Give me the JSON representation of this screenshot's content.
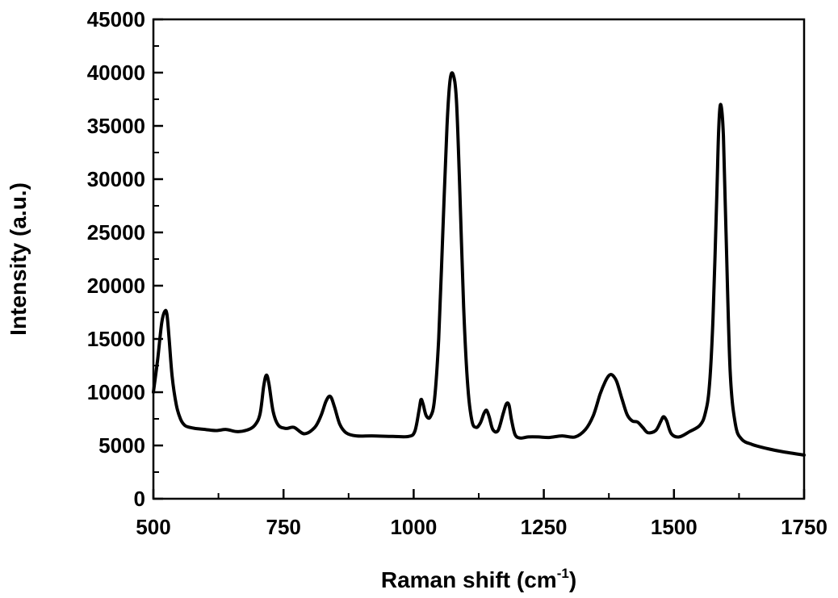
{
  "chart_data": {
    "type": "line",
    "title": "",
    "xlabel": "Raman shift (cm",
    "xlabel_sup": "-1",
    "xlabel_suffix": ")",
    "ylabel": "Intensity (a.u.)",
    "xlim": [
      500,
      1750
    ],
    "ylim": [
      0,
      45000
    ],
    "xticks": [
      500,
      750,
      1000,
      1250,
      1500,
      1750
    ],
    "yticks": [
      0,
      5000,
      10000,
      15000,
      20000,
      25000,
      30000,
      35000,
      40000,
      45000
    ],
    "grid": false,
    "legend": "none",
    "line_color": "#000000",
    "series": [
      {
        "x": [
          500,
          508,
          516,
          522,
          526,
          530,
          536,
          544,
          552,
          560,
          570,
          580,
          600,
          620,
          640,
          660,
          680,
          695,
          705,
          712,
          717,
          722,
          730,
          740,
          755,
          770,
          790,
          810,
          822,
          832,
          840,
          848,
          858,
          870,
          890,
          920,
          960,
          990,
          1002,
          1010,
          1014,
          1018,
          1024,
          1032,
          1040,
          1048,
          1056,
          1064,
          1070,
          1076,
          1082,
          1088,
          1096,
          1104,
          1112,
          1120,
          1128,
          1135,
          1140,
          1145,
          1152,
          1162,
          1172,
          1178,
          1183,
          1188,
          1195,
          1205,
          1220,
          1240,
          1260,
          1285,
          1310,
          1330,
          1345,
          1358,
          1368,
          1376,
          1382,
          1390,
          1400,
          1410,
          1420,
          1430,
          1440,
          1450,
          1465,
          1475,
          1480,
          1486,
          1495,
          1510,
          1530,
          1550,
          1560,
          1568,
          1575,
          1582,
          1586,
          1590,
          1595,
          1600,
          1608,
          1618,
          1630,
          1650,
          1680,
          1710,
          1750
        ],
        "y": [
          10000,
          13000,
          16500,
          17600,
          17300,
          15200,
          11500,
          8800,
          7500,
          6900,
          6700,
          6600,
          6500,
          6400,
          6500,
          6300,
          6450,
          6900,
          8000,
          10600,
          11600,
          10800,
          8200,
          6900,
          6600,
          6700,
          6100,
          6700,
          7800,
          9200,
          9600,
          8600,
          7000,
          6200,
          5900,
          5900,
          5850,
          5850,
          6300,
          8200,
          9300,
          8900,
          7800,
          7700,
          9300,
          15000,
          25000,
          35000,
          39300,
          39800,
          37500,
          30000,
          18000,
          10500,
          7300,
          6700,
          7100,
          8000,
          8300,
          7700,
          6500,
          6400,
          8000,
          8900,
          8800,
          7400,
          6000,
          5700,
          5800,
          5800,
          5750,
          5900,
          5800,
          6500,
          7800,
          9800,
          11000,
          11600,
          11600,
          11000,
          9400,
          7900,
          7300,
          7200,
          6700,
          6200,
          6400,
          7300,
          7700,
          7300,
          6100,
          5800,
          6300,
          6900,
          8000,
          10500,
          17000,
          28000,
          34800,
          37000,
          34000,
          25000,
          12000,
          7000,
          5600,
          5100,
          4700,
          4400,
          4100
        ]
      }
    ]
  }
}
